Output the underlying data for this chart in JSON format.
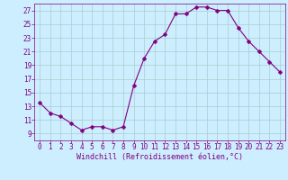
{
  "x": [
    0,
    1,
    2,
    3,
    4,
    5,
    6,
    7,
    8,
    9,
    10,
    11,
    12,
    13,
    14,
    15,
    16,
    17,
    18,
    19,
    20,
    21,
    22,
    23
  ],
  "y": [
    13.5,
    12.0,
    11.5,
    10.5,
    9.5,
    10.0,
    10.0,
    9.5,
    10.0,
    16.0,
    20.0,
    22.5,
    23.5,
    26.5,
    26.5,
    27.5,
    27.5,
    27.0,
    27.0,
    24.5,
    22.5,
    21.0,
    19.5,
    18.0
  ],
  "line_color": "#800080",
  "marker": "P",
  "marker_size": 2.5,
  "bg_color": "#cceeff",
  "grid_color": "#aacccc",
  "xlabel": "Windchill (Refroidissement éolien,°C)",
  "xlabel_fontsize": 6.0,
  "tick_fontsize": 5.5,
  "ylim": [
    8,
    28
  ],
  "yticks": [
    9,
    11,
    13,
    15,
    17,
    19,
    21,
    23,
    25,
    27
  ],
  "xticks": [
    0,
    1,
    2,
    3,
    4,
    5,
    6,
    7,
    8,
    9,
    10,
    11,
    12,
    13,
    14,
    15,
    16,
    17,
    18,
    19,
    20,
    21,
    22,
    23
  ],
  "xlim": [
    -0.5,
    23.5
  ]
}
